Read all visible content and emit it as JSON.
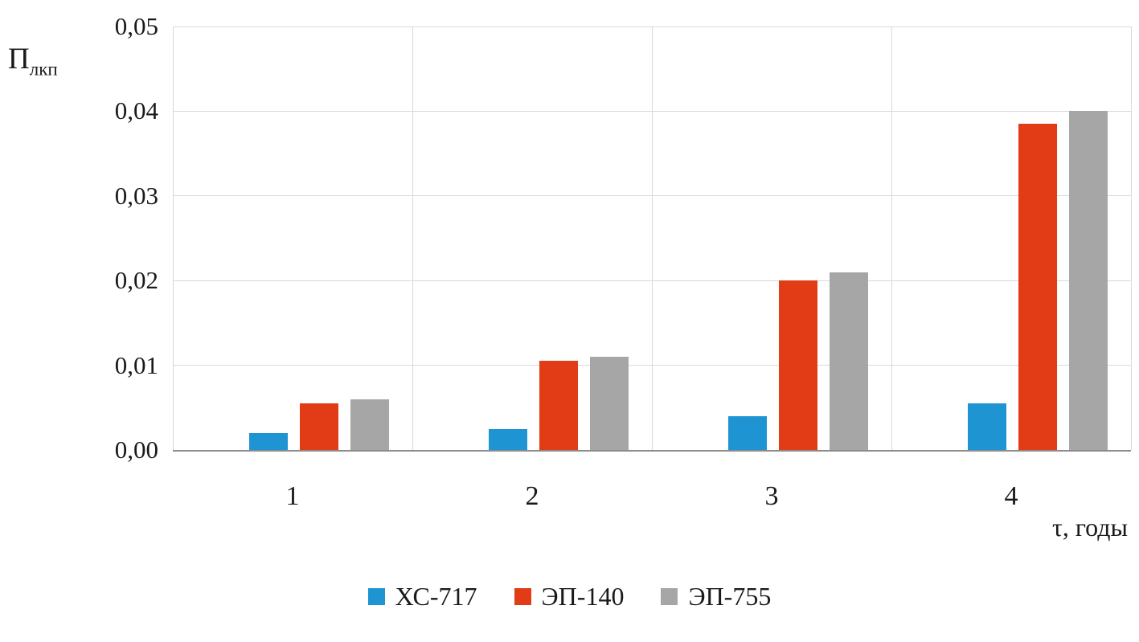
{
  "chart_data": {
    "type": "bar",
    "title": "",
    "ylabel_main": "П",
    "ylabel_sub": "лкп",
    "xlabel": "τ, годы",
    "ylim": [
      0,
      0.05
    ],
    "yticks": [
      {
        "label": "0,00",
        "value": 0
      },
      {
        "label": "0,01",
        "value": 0.01
      },
      {
        "label": "0,02",
        "value": 0.02
      },
      {
        "label": "0,03",
        "value": 0.03
      },
      {
        "label": "0,04",
        "value": 0.04
      },
      {
        "label": "0,05",
        "value": 0.05
      }
    ],
    "categories": [
      "1",
      "2",
      "3",
      "4"
    ],
    "series": [
      {
        "name": "ХС-717",
        "color": "#1E94D2",
        "values": [
          0.002,
          0.0025,
          0.004,
          0.0055
        ]
      },
      {
        "name": "ЭП-140",
        "color": "#E23C16",
        "values": [
          0.0055,
          0.0105,
          0.02,
          0.0385
        ]
      },
      {
        "name": "ЭП-755",
        "color": "#A6A6A6",
        "values": [
          0.006,
          0.011,
          0.021,
          0.04
        ]
      }
    ],
    "grid": true,
    "legend_position": "bottom"
  },
  "colors": {
    "gridline": "#D9D9D9",
    "axis_line": "#8C8C8C",
    "text": "#1a1a1a"
  }
}
